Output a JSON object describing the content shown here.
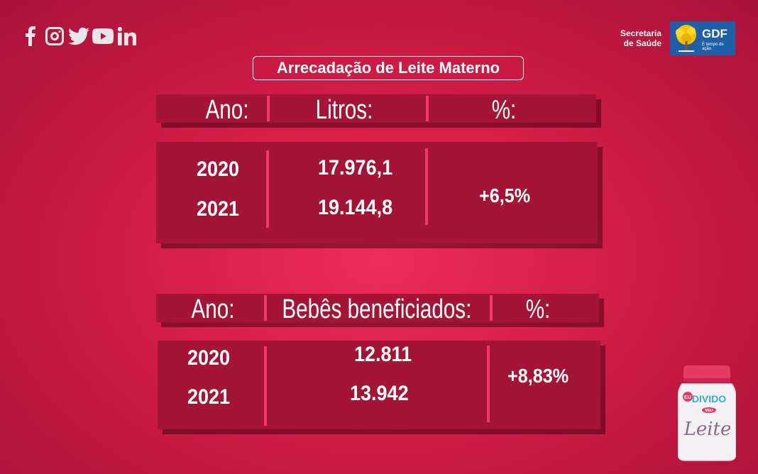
{
  "social": {
    "icons": [
      "facebook-icon",
      "instagram-icon",
      "twitter-icon",
      "youtube-icon",
      "linkedin-icon"
    ]
  },
  "brand": {
    "secretaria_line1": "Secretaria",
    "secretaria_line2": "de Saúde",
    "gdf": "GDF",
    "slogan": "É tempo de ação."
  },
  "title": "Arrecadação de Leite Materno",
  "table1": {
    "headers": [
      "Ano:",
      "Litros:",
      "%:"
    ],
    "rows": [
      {
        "year": "2020",
        "value": "17.976,1"
      },
      {
        "year": "2021",
        "value": "19.144,8"
      }
    ],
    "percent": "+6,5%"
  },
  "table2": {
    "headers": [
      "Ano:",
      "Bebês beneficiados:",
      "%:"
    ],
    "rows": [
      {
        "year": "2020",
        "value": "12.811"
      },
      {
        "year": "2021",
        "value": "13.942"
      }
    ],
    "percent": "+8,83%"
  },
  "jar": {
    "label_eu": "EU",
    "label_divido": "DIVIDO",
    "label_meu": "MEU",
    "label_leite": "Leite"
  },
  "colors": {
    "background": "#d91f4c",
    "panel": "#a31436",
    "separator": "#f23867",
    "gdf_blue": "#1e5fa8"
  }
}
